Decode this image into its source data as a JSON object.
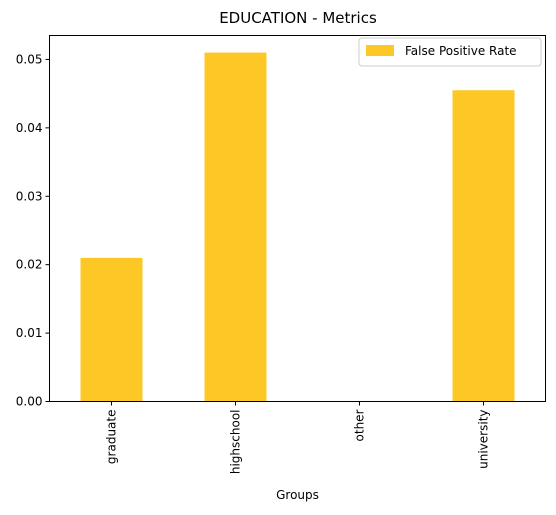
{
  "chart_data": {
    "type": "bar",
    "title": "EDUCATION - Metrics",
    "xlabel": "Groups",
    "ylabel": "",
    "categories": [
      "graduate",
      "highschool",
      "other",
      "university"
    ],
    "series": [
      {
        "name": "False Positive Rate",
        "values": [
          0.021,
          0.051,
          0.0,
          0.0455
        ],
        "color": "#fdc725"
      }
    ],
    "ylim": [
      0,
      0.0535
    ],
    "yticks": [
      "0.00",
      "0.01",
      "0.02",
      "0.03",
      "0.04",
      "0.05"
    ],
    "grid": false,
    "legend_position": "top-right"
  }
}
